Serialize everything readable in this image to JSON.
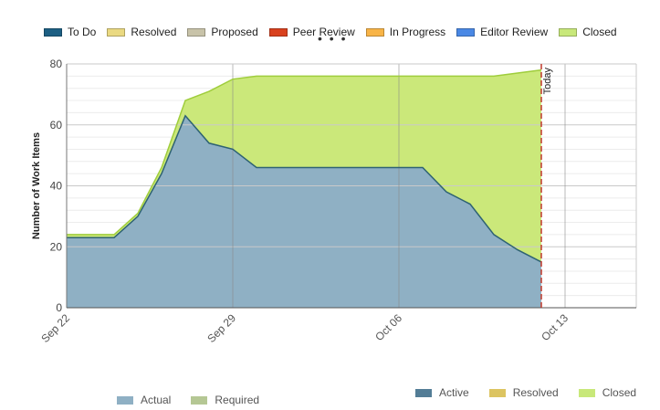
{
  "legend_top": [
    {
      "label": "To Do",
      "color": "#1d5f83"
    },
    {
      "label": "Resolved",
      "color": "#ead981"
    },
    {
      "label": "Proposed",
      "color": "#c8c3a9"
    },
    {
      "label": "Peer Review",
      "color": "#d9411e"
    },
    {
      "label": "In Progress",
      "color": "#f8b447"
    },
    {
      "label": "Editor Review",
      "color": "#4a88e5"
    },
    {
      "label": "Closed",
      "color": "#c8e87a"
    }
  ],
  "legend_bottom_left": [
    {
      "label": "Actual",
      "color": "#8fb0c4"
    },
    {
      "label": "Required",
      "color": "#b5c794"
    }
  ],
  "legend_bottom_right": [
    {
      "label": "Active",
      "color": "#537d96"
    },
    {
      "label": "Resolved",
      "color": "#dcc461"
    },
    {
      "label": "Closed",
      "color": "#c8e87a"
    }
  ],
  "more_indicator": "• • •",
  "chart_data": {
    "type": "area",
    "ylabel": "Number of Work Items",
    "ylim": [
      0,
      80
    ],
    "yticks": [
      0,
      20,
      40,
      60,
      80
    ],
    "xlim": [
      "2014-09-22",
      "2014-10-16"
    ],
    "xticks": [
      {
        "date": "2014-09-22",
        "label": "Sep 22"
      },
      {
        "date": "2014-09-29",
        "label": "Sep 29"
      },
      {
        "date": "2014-10-06",
        "label": "Oct 06"
      },
      {
        "date": "2014-10-13",
        "label": "Oct 13"
      }
    ],
    "today": {
      "date": "2014-10-12",
      "label": "Today"
    },
    "x": [
      "2014-09-22",
      "2014-09-23",
      "2014-09-24",
      "2014-09-25",
      "2014-09-26",
      "2014-09-27",
      "2014-09-28",
      "2014-09-29",
      "2014-09-30",
      "2014-10-01",
      "2014-10-02",
      "2014-10-03",
      "2014-10-04",
      "2014-10-05",
      "2014-10-06",
      "2014-10-07",
      "2014-10-08",
      "2014-10-09",
      "2014-10-10",
      "2014-10-11",
      "2014-10-12"
    ],
    "series": [
      {
        "name": "Active",
        "color": "#8fb0c4",
        "line": "#2e6273",
        "values": [
          23,
          23,
          23,
          30,
          44,
          63,
          54,
          52,
          46,
          46,
          46,
          46,
          46,
          46,
          46,
          46,
          38,
          34,
          24,
          19,
          15
        ]
      },
      {
        "name": "Closed",
        "color": "#cbe87a",
        "line": "#9fcd3c",
        "values": [
          1,
          1,
          1,
          1,
          2,
          5,
          17,
          23,
          30,
          30,
          30,
          30,
          30,
          30,
          30,
          30,
          38,
          42,
          52,
          58,
          63
        ]
      }
    ],
    "colors": {
      "grid": "#c9c9c9",
      "minor_grid": "#ececec",
      "today_line": "#c0392b",
      "axis": "#888888"
    }
  }
}
